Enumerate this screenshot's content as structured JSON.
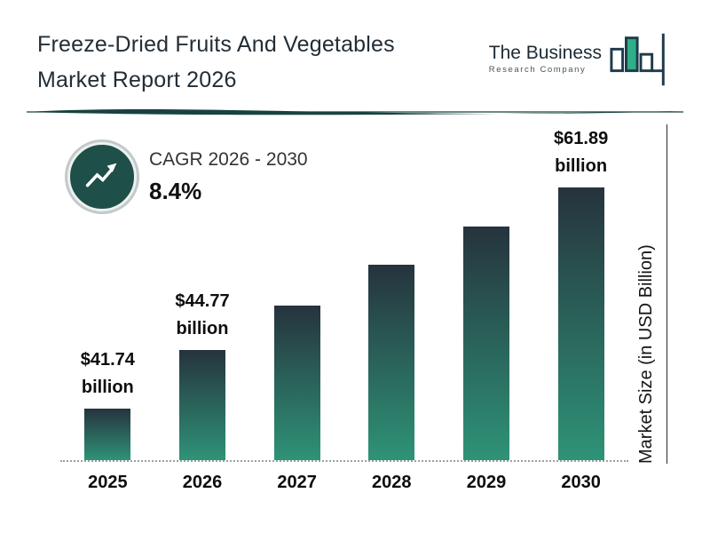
{
  "header": {
    "title_line1": "Freeze-Dried Fruits And Vegetables",
    "title_line2": "Market Report 2026",
    "logo": {
      "line1": "The Business",
      "line2": "Research Company"
    }
  },
  "cagr_badge": {
    "label": "CAGR 2026 - 2030",
    "value": "8.4%"
  },
  "chart_data": {
    "type": "bar",
    "title": "Freeze-Dried Fruits And Vegetables Market Report 2026",
    "categories": [
      "2025",
      "2026",
      "2027",
      "2028",
      "2029",
      "2030"
    ],
    "values": [
      41.74,
      44.77,
      48.5,
      52.6,
      57.0,
      61.89
    ],
    "value_labels": [
      "$41.74 billion",
      "$44.77 billion",
      "",
      "",
      "",
      "$61.89 billion"
    ],
    "ylabel": "Market Size (in USD Billion)",
    "unit": "USD Billion",
    "cagr": "8.4%",
    "cagr_period": "2026 - 2030",
    "legend": "none",
    "baseline_style": "dotted"
  },
  "colors": {
    "bar_top": "#26333d",
    "bar_bottom": "#2e9377",
    "divider": "#17433e",
    "logo_green": "#2fae88",
    "logo_outline": "#1d3b4a",
    "badge_fill": "#1e4f49",
    "badge_ring": "#c2cac9"
  }
}
